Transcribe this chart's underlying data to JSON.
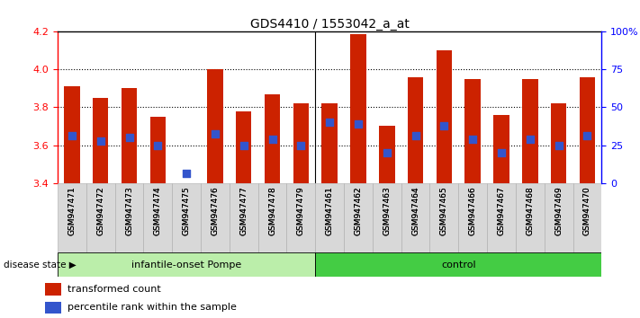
{
  "title": "GDS4410 / 1553042_a_at",
  "samples": [
    "GSM947471",
    "GSM947472",
    "GSM947473",
    "GSM947474",
    "GSM947475",
    "GSM947476",
    "GSM947477",
    "GSM947478",
    "GSM947479",
    "GSM947461",
    "GSM947462",
    "GSM947463",
    "GSM947464",
    "GSM947465",
    "GSM947466",
    "GSM947467",
    "GSM947468",
    "GSM947469",
    "GSM947470"
  ],
  "bar_values": [
    3.91,
    3.85,
    3.9,
    3.75,
    3.4,
    4.0,
    3.78,
    3.87,
    3.82,
    3.82,
    4.19,
    3.7,
    3.96,
    4.1,
    3.95,
    3.76,
    3.95,
    3.82,
    3.96
  ],
  "blue_dot_values": [
    3.65,
    3.62,
    3.64,
    3.6,
    3.45,
    3.66,
    3.6,
    3.63,
    3.6,
    3.72,
    3.71,
    3.56,
    3.65,
    3.7,
    3.63,
    3.56,
    3.63,
    3.6,
    3.65
  ],
  "bar_color": "#cc2200",
  "blue_dot_color": "#3355cc",
  "ylim_left": [
    3.4,
    4.2
  ],
  "ylim_right": [
    0,
    100
  ],
  "yticks_left": [
    3.4,
    3.6,
    3.8,
    4.0,
    4.2
  ],
  "yticks_right": [
    0,
    25,
    50,
    75,
    100
  ],
  "ytick_labels_right": [
    "0",
    "25",
    "50",
    "75",
    "100%"
  ],
  "group1_label": "infantile-onset Pompe",
  "group2_label": "control",
  "group1_count": 9,
  "group2_count": 10,
  "disease_state_label": "disease state",
  "legend1_label": "transformed count",
  "legend2_label": "percentile rank within the sample",
  "group1_color": "#bbeeaa",
  "group2_color": "#44cc44",
  "bar_width": 0.55,
  "xtick_bg_color": "#d8d8d8"
}
